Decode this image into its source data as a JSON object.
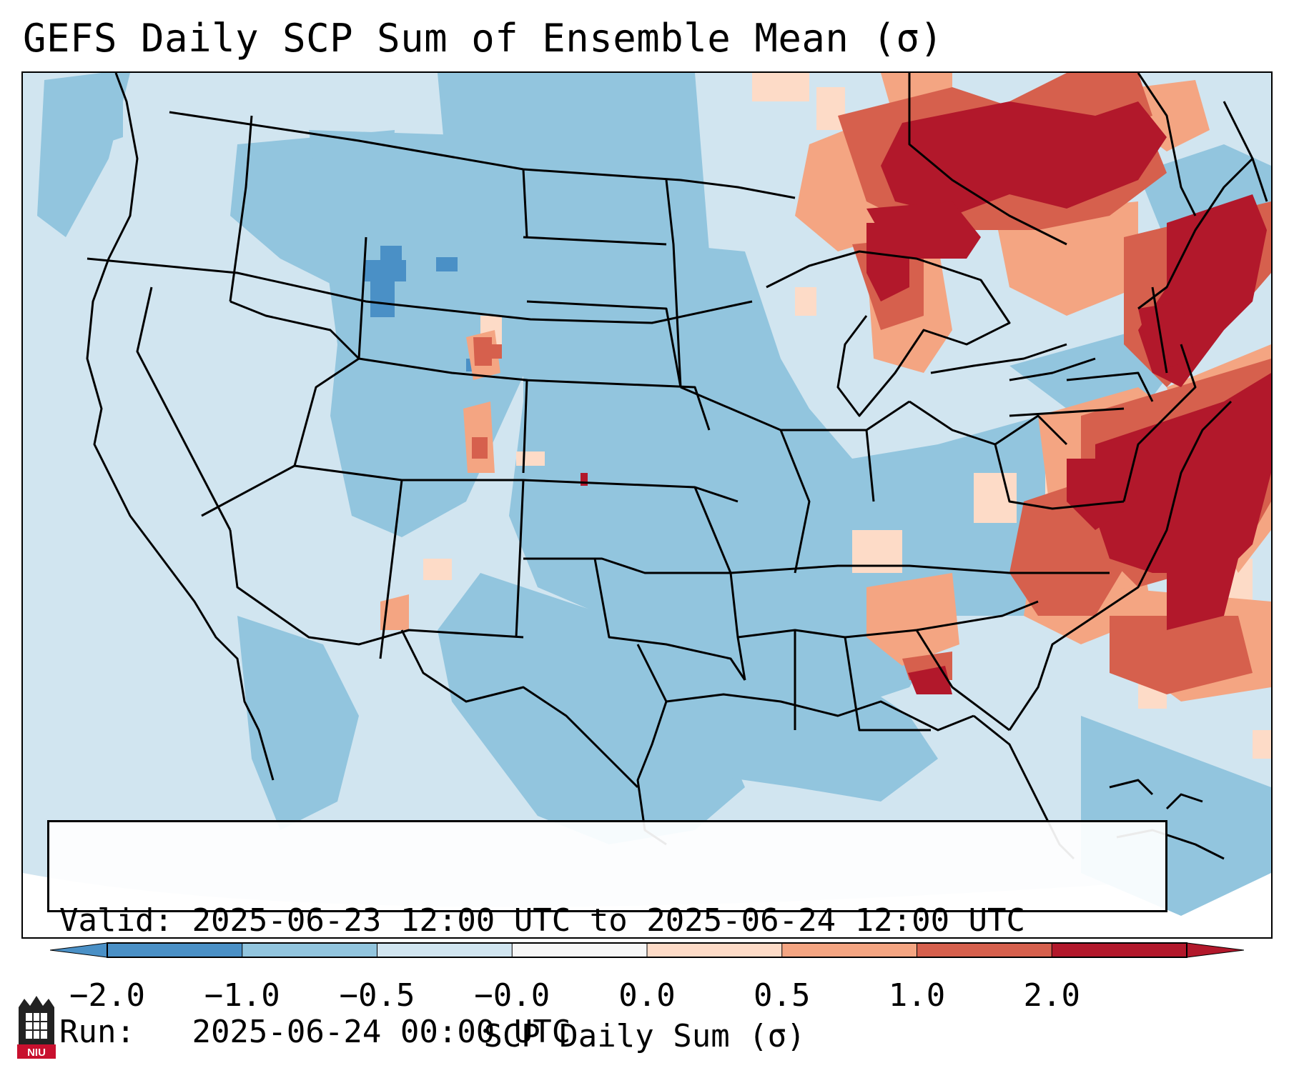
{
  "title": "GEFS Daily SCP Sum of Ensemble Mean (σ)",
  "info": {
    "valid_label": "Valid:",
    "valid_value": "2025-06-23 12:00 UTC to 2025-06-24 12:00 UTC",
    "run_label": "Run:",
    "run_value": "2025-06-24 00:00 UTC"
  },
  "colorbar": {
    "label": "SCP Daily Sum (σ)",
    "ticks": [
      "−2.0",
      "−1.0",
      "−0.5",
      "−0.0",
      "0.0",
      "0.5",
      "1.0",
      "2.0"
    ],
    "colors": [
      "#4a90c6",
      "#92c5de",
      "#d1e5f0",
      "#f7f7f7",
      "#fddbc7",
      "#f4a582",
      "#d6604d",
      "#b2182b"
    ],
    "extend": "both"
  },
  "map": {
    "projection": "Lambert conformal, CONUS",
    "background_color": "#d1e5f0",
    "regions": [
      {
        "area": "Northeast US / New England",
        "category": "≥2.0",
        "color": "#b2182b"
      },
      {
        "area": "Western Atlantic off Carolinas",
        "category": "≥2.0",
        "color": "#b2182b"
      },
      {
        "area": "Southern Ontario / Quebec",
        "category": "≥2.0",
        "color": "#b2182b"
      },
      {
        "area": "Northern Lower Michigan",
        "category": "≥2.0",
        "color": "#b2182b"
      },
      {
        "area": "Central Plains, Midwest, Texas",
        "category": "−1.0 to −0.5",
        "color": "#92c5de"
      },
      {
        "area": "Western US",
        "category": "−0.5 to 0.0",
        "color": "#d1e5f0"
      }
    ]
  },
  "logo": {
    "text": "NIU"
  }
}
